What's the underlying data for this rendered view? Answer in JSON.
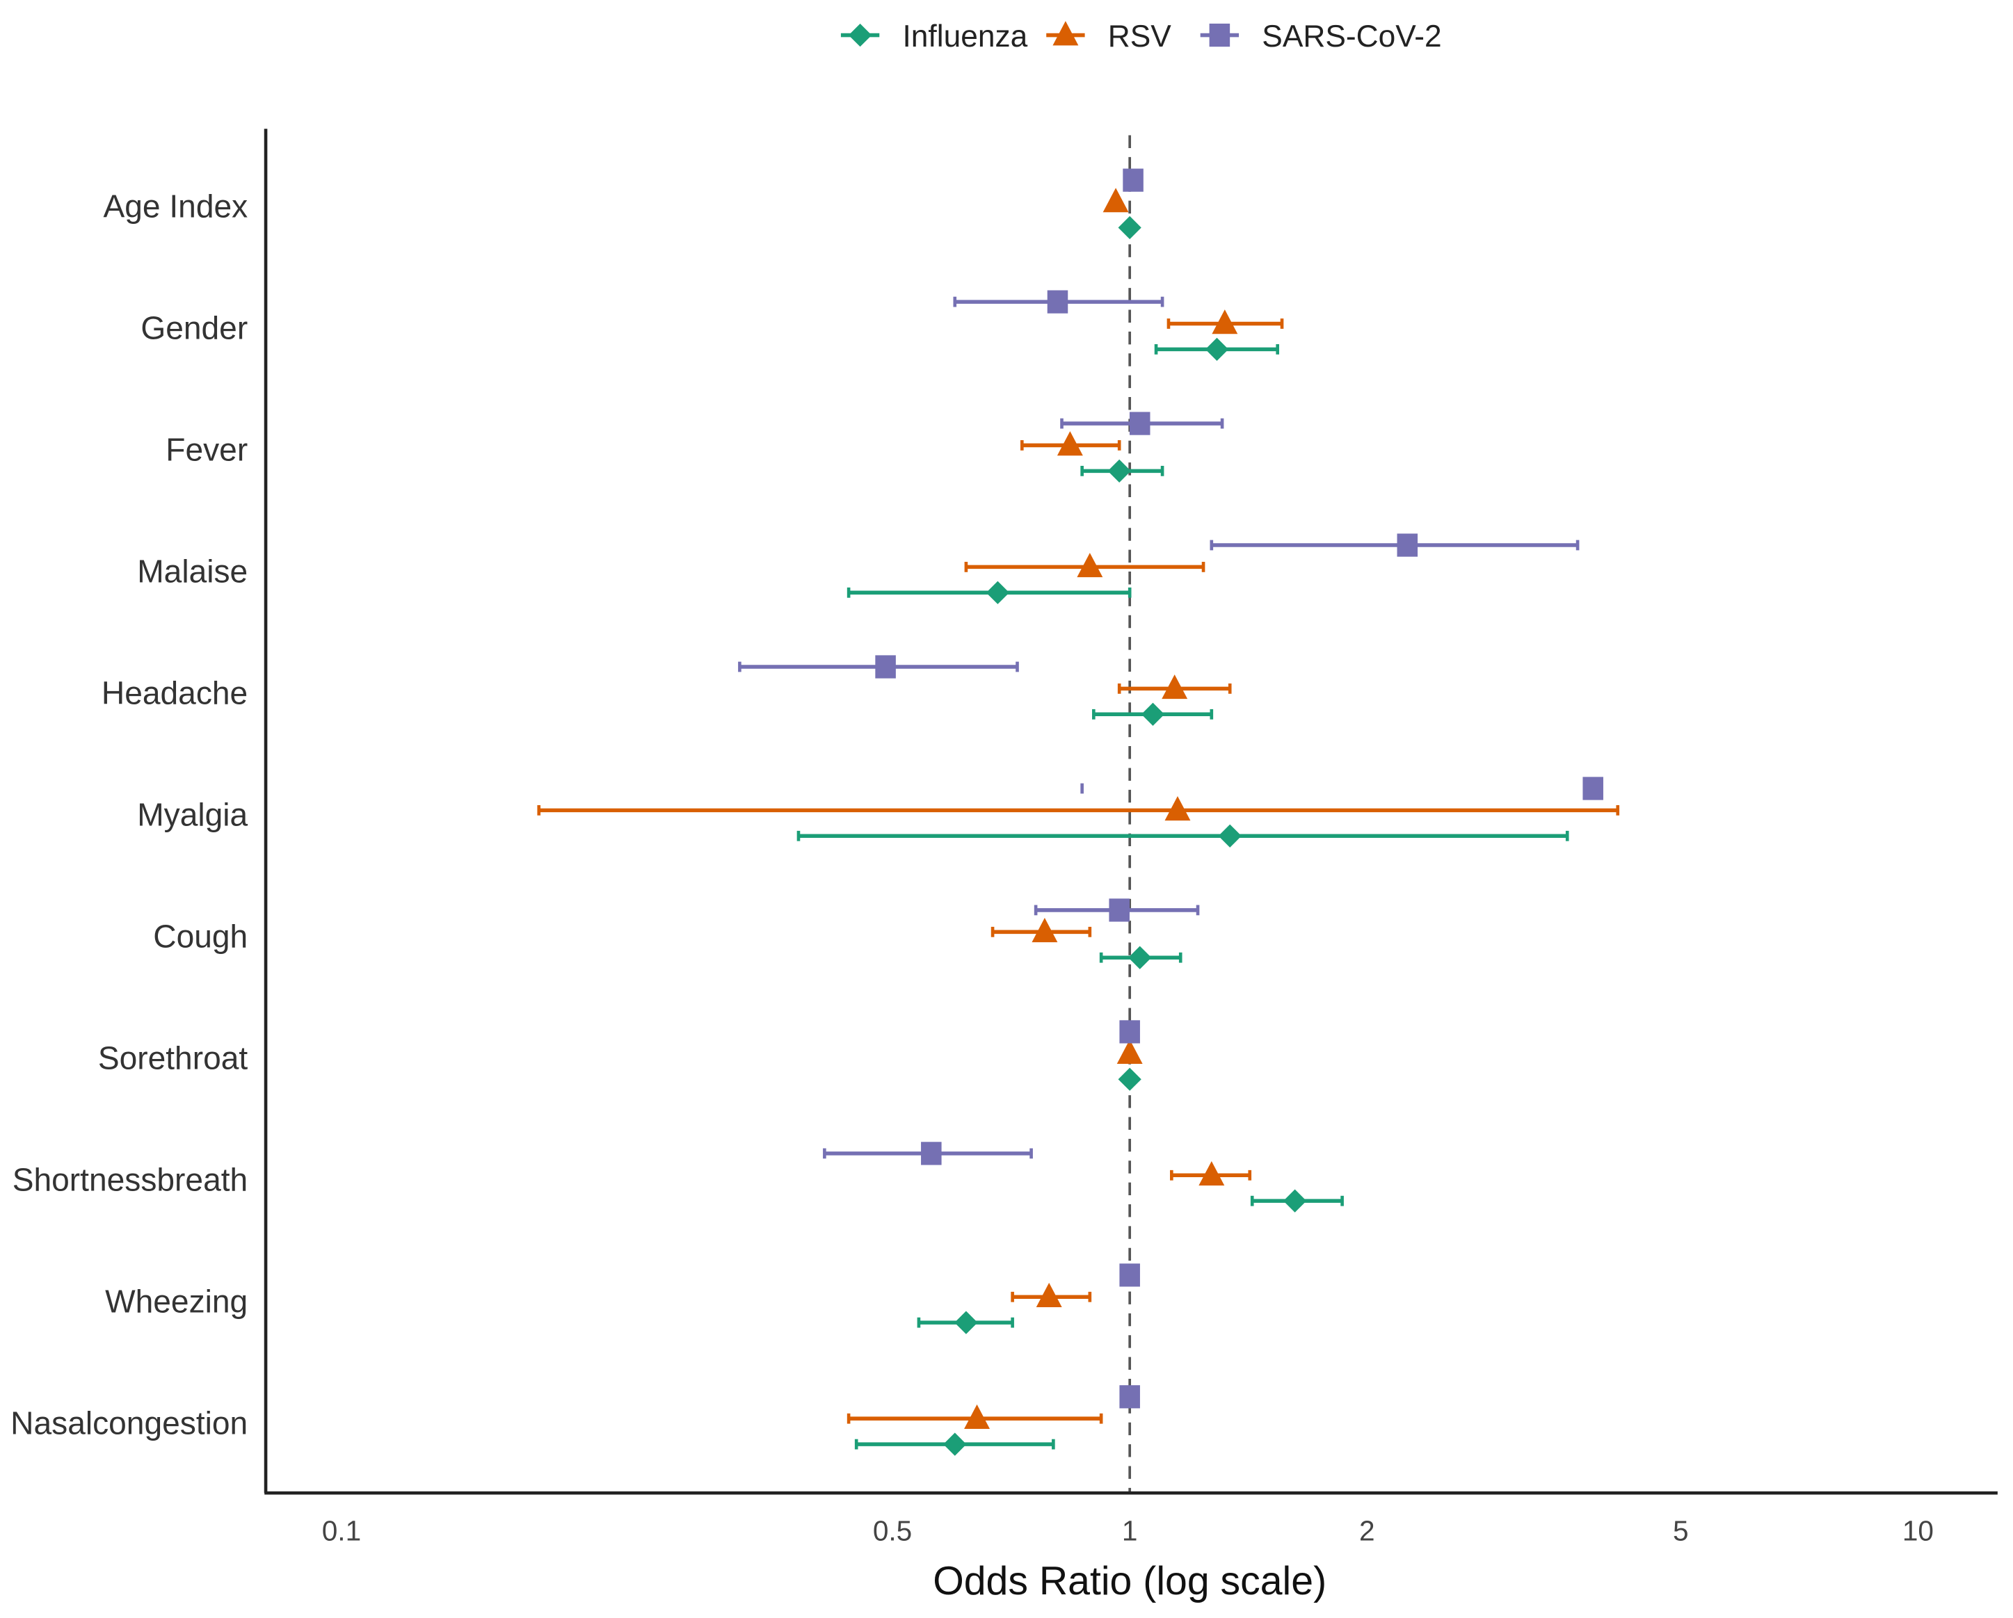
{
  "chart_data": {
    "type": "scatter",
    "subtype": "forest-plot",
    "title": "",
    "xlabel": "Odds Ratio (log scale)",
    "ylabel": "",
    "xscale": "log",
    "xlim": [
      0.08,
      11.5
    ],
    "xticks": [
      0.1,
      0.5,
      1,
      2,
      5,
      10
    ],
    "xtick_labels": [
      "0.1",
      "0.5",
      "1",
      "2",
      "5",
      "10"
    ],
    "reference_line": 1,
    "legend_position": "top",
    "categories": [
      "Age Index",
      "Gender",
      "Fever",
      "Malaise",
      "Headache",
      "Myalgia",
      "Cough",
      "Sorethroat",
      "Shortnessbreath",
      "Wheezing",
      "Nasalcongestion"
    ],
    "series": [
      {
        "name": "Influenza",
        "color": "#1b9e77",
        "marker": "diamond",
        "or": [
          1.0,
          1.29,
          0.97,
          0.68,
          1.07,
          1.34,
          1.03,
          1.0,
          1.62,
          0.62,
          0.6
        ],
        "low": [
          null,
          1.08,
          0.87,
          0.44,
          0.9,
          0.38,
          0.92,
          null,
          1.43,
          0.54,
          0.45
        ],
        "high": [
          null,
          1.54,
          1.1,
          1.0,
          1.27,
          3.59,
          1.16,
          null,
          1.86,
          0.71,
          0.8
        ]
      },
      {
        "name": "RSV",
        "color": "#d95f02",
        "marker": "triangle",
        "or": [
          0.96,
          1.32,
          0.84,
          0.89,
          1.14,
          1.15,
          0.78,
          1.0,
          1.27,
          0.79,
          0.64
        ],
        "low": [
          null,
          1.12,
          0.73,
          0.62,
          0.97,
          0.178,
          0.67,
          null,
          1.13,
          0.71,
          0.44
        ],
        "high": [
          null,
          1.56,
          0.97,
          1.24,
          1.34,
          4.16,
          0.89,
          null,
          1.42,
          0.89,
          0.92
        ]
      },
      {
        "name": "SARS-CoV-2",
        "color": "#7570b3",
        "marker": "square",
        "or": [
          1.01,
          0.81,
          1.03,
          2.25,
          0.49,
          3.87,
          0.97,
          1.0,
          0.56,
          1.0,
          1.0
        ],
        "low": [
          null,
          0.6,
          0.82,
          1.27,
          0.32,
          0.87,
          0.76,
          null,
          0.41,
          null,
          null
        ],
        "high": [
          null,
          1.1,
          1.31,
          3.7,
          0.72,
          null,
          1.22,
          null,
          0.75,
          null,
          null
        ]
      }
    ]
  }
}
